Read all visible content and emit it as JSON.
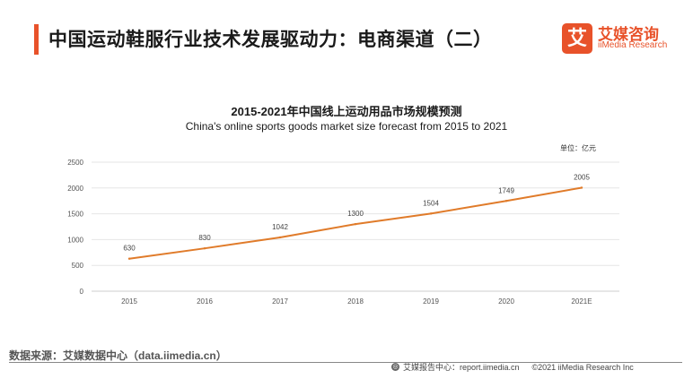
{
  "header": {
    "title": "中国运动鞋服行业技术发展驱动力：电商渠道（二）",
    "logo_mark": "艾",
    "logo_cn": "艾媒咨询",
    "logo_en": "iiMedia Research"
  },
  "chart_data": {
    "type": "line",
    "title": "2015-2021年中国线上运动用品市场规模预测",
    "subtitle": "China's online sports goods market size forecast from 2015 to 2021",
    "unit": "单位：亿元",
    "categories": [
      "2015",
      "2016",
      "2017",
      "2018",
      "2019",
      "2020",
      "2021E"
    ],
    "series": [
      {
        "values": [
          630,
          830,
          1042,
          1300,
          1504,
          1749,
          2005
        ]
      }
    ],
    "ylim": [
      0,
      2500
    ],
    "yticks": [
      0,
      500,
      1000,
      1500,
      2000,
      2500
    ],
    "grid": true,
    "colors": {
      "line": "#e07b2a",
      "grid": "#e6e6e6"
    }
  },
  "footer": {
    "source": "数据来源：艾媒数据中心（data.iimedia.cn）",
    "report_icon": "globe-icon",
    "report": "艾媒报告中心：report.iimedia.cn",
    "copyright": "©2021  iiMedia Research  Inc"
  }
}
